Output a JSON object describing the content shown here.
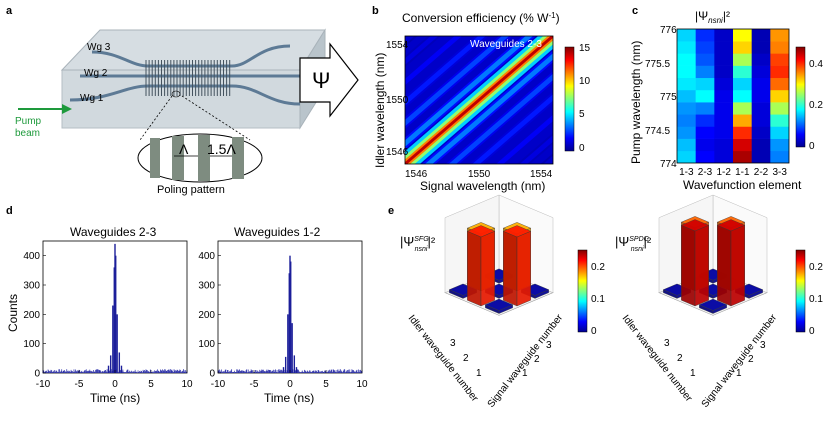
{
  "panels": {
    "a": {
      "label": "a",
      "waveguides": [
        "Wg 3",
        "Wg 2",
        "Wg 1"
      ],
      "pump_label_1": "Pump",
      "pump_label_2": "beam",
      "psi_symbol": "Ψ",
      "period_1": "Λ",
      "period_2": "1.5Λ",
      "poling_caption": "Poling pattern",
      "colors": {
        "pump_arrow": "#1e9a3c",
        "chip": "#c9d3d9",
        "waveguide": "#5d7a95"
      }
    },
    "b": {
      "label": "b",
      "title": "Conversion efficiency (% W",
      "title_sup": "-1",
      "title_end": ")",
      "inset": "Waveguides 2-3",
      "xlabel": "Signal wavelength (nm)",
      "ylabel": "Idler wavelength (nm)",
      "xticks": [
        "1546",
        "1550",
        "1554"
      ],
      "yticks": [
        "1554",
        "1550",
        "1546"
      ],
      "colorbar_ticks": [
        "15",
        "10",
        "5",
        "0"
      ]
    },
    "c": {
      "label": "c",
      "title": "|Ψ",
      "title_sub": "nsni",
      "title_end": "|²",
      "xlabel": "Wavefunction element",
      "ylabel": "Pump wavelength (nm)",
      "xticks": [
        "1-3",
        "2-3",
        "1-2",
        "1-1",
        "2-2",
        "3-3"
      ],
      "yticks": [
        "776",
        "775.5",
        "775",
        "774.5",
        "774"
      ],
      "colorbar_ticks": [
        "0.4",
        "0.2",
        "0"
      ]
    },
    "d": {
      "label": "d",
      "ylabel": "Counts",
      "xlabel": "Time (ns)",
      "left_title": "Waveguides 2-3",
      "right_title": "Waveguides 1-2",
      "yticks": [
        "400",
        "300",
        "200",
        "100",
        "0"
      ],
      "xticks": [
        "-10",
        "-5",
        "0",
        "5",
        "10"
      ]
    },
    "e": {
      "label": "e",
      "left_title": "|Ψ",
      "left_sup": "SFG",
      "right_title": "|Ψ",
      "right_sup": "SPDC",
      "sub": "nsni",
      "end": "|²",
      "idler_axis": "Idler waveguide number",
      "signal_axis": "Signal waveguide number",
      "axis_numbers": [
        "1",
        "2",
        "3"
      ],
      "colorbar_ticks": [
        "0.2",
        "0.1",
        "0"
      ]
    }
  },
  "chart_data": [
    {
      "type": "heatmap",
      "title": "Conversion efficiency (% W-1)",
      "xlabel": "Signal wavelength (nm)",
      "ylabel": "Idler wavelength (nm)",
      "xlim": [
        1545,
        1555
      ],
      "ylim": [
        1545,
        1555
      ],
      "zlim": [
        0,
        16
      ],
      "description_values": {
        "diagonal_peak": 15,
        "side_band_peak": 5
      }
    },
    {
      "type": "heatmap",
      "title": "|Psi_{ns ni}|^2",
      "categories": [
        "1-3",
        "2-3",
        "1-2",
        "1-1",
        "2-2",
        "3-3"
      ],
      "ylim": [
        774,
        776
      ],
      "zlim": [
        0,
        0.48
      ],
      "rows_pump_wavelength": [
        774.0,
        774.2,
        774.4,
        774.6,
        774.8,
        775.0,
        775.2,
        775.4,
        775.6,
        775.8,
        776.0
      ],
      "values": [
        [
          0.16,
          0.06,
          0.04,
          0.46,
          0.02,
          0.12
        ],
        [
          0.15,
          0.05,
          0.04,
          0.44,
          0.02,
          0.13
        ],
        [
          0.13,
          0.06,
          0.05,
          0.4,
          0.03,
          0.16
        ],
        [
          0.12,
          0.08,
          0.05,
          0.34,
          0.04,
          0.2
        ],
        [
          0.13,
          0.12,
          0.05,
          0.26,
          0.04,
          0.26
        ],
        [
          0.15,
          0.18,
          0.05,
          0.18,
          0.05,
          0.32
        ],
        [
          0.17,
          0.16,
          0.04,
          0.16,
          0.05,
          0.37
        ],
        [
          0.18,
          0.12,
          0.03,
          0.2,
          0.04,
          0.4
        ],
        [
          0.18,
          0.1,
          0.03,
          0.26,
          0.03,
          0.39
        ],
        [
          0.17,
          0.09,
          0.03,
          0.32,
          0.02,
          0.36
        ],
        [
          0.16,
          0.08,
          0.03,
          0.3,
          0.02,
          0.35
        ]
      ]
    },
    {
      "type": "bar",
      "title": "Waveguides 2-3",
      "xlabel": "Time (ns)",
      "ylabel": "Counts",
      "xlim": [
        -10,
        10
      ],
      "ylim": [
        0,
        450
      ],
      "x": [
        -0.9,
        -0.6,
        -0.3,
        -0.1,
        0.0,
        0.1,
        0.3,
        0.6,
        0.9
      ],
      "values": [
        25,
        60,
        230,
        360,
        440,
        400,
        200,
        70,
        25
      ],
      "background": 12
    },
    {
      "type": "bar",
      "title": "Waveguides 1-2",
      "xlabel": "Time (ns)",
      "ylabel": "Counts",
      "xlim": [
        -10,
        10
      ],
      "ylim": [
        0,
        450
      ],
      "x": [
        -0.9,
        -0.6,
        -0.3,
        -0.1,
        0.0,
        0.1,
        0.3,
        0.6,
        0.9
      ],
      "values": [
        20,
        55,
        200,
        340,
        400,
        380,
        170,
        60,
        20
      ],
      "background": 12
    },
    {
      "type": "bar",
      "title": "|Psi^SFG|^2",
      "xlabel": "Signal waveguide number",
      "ylabel": "Idler waveguide number",
      "categories": [
        "1-1",
        "1-2",
        "1-3",
        "2-1",
        "2-2",
        "2-3",
        "3-1",
        "3-2",
        "3-3"
      ],
      "values": [
        0.0,
        0.19,
        0.0,
        0.19,
        0.0,
        0.23,
        0.0,
        0.23,
        0.0
      ],
      "zlim": [
        0,
        0.25
      ]
    },
    {
      "type": "bar",
      "title": "|Psi^SPDC|^2",
      "xlabel": "Signal waveguide number",
      "ylabel": "Idler waveguide number",
      "categories": [
        "1-1",
        "1-2",
        "1-3",
        "2-1",
        "2-2",
        "2-3",
        "3-1",
        "3-2",
        "3-3"
      ],
      "values": [
        0.0,
        0.21,
        0.0,
        0.21,
        0.0,
        0.25,
        0.0,
        0.25,
        0.0
      ],
      "zlim": [
        0,
        0.25
      ]
    }
  ]
}
